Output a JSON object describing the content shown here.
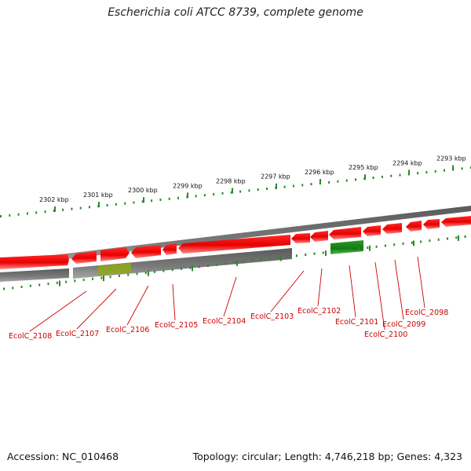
{
  "title": "Escherichia coli ATCC 8739, complete genome",
  "footer": {
    "accession": "Accession: NC_010468",
    "summary": "Topology: circular; Length: 4,746,218 bp; Genes: 4,323"
  },
  "colors": {
    "gene_forward": "#ee1111",
    "gene_highlight": "#1d8a1d",
    "tick": "#2a8a2a",
    "backbone": "#7a7a7a",
    "callout": "#cc0000"
  },
  "ticks": [
    {
      "label": "2302 kbp"
    },
    {
      "label": "2301 kbp"
    },
    {
      "label": "2300 kbp"
    },
    {
      "label": "2299 kbp"
    },
    {
      "label": "2298 kbp"
    },
    {
      "label": "2297 kbp"
    },
    {
      "label": "2296 kbp"
    },
    {
      "label": "2295 kbp"
    },
    {
      "label": "2294 kbp"
    },
    {
      "label": "2293 kbp"
    }
  ],
  "genes": [
    {
      "label": "EcolC_2108"
    },
    {
      "label": "EcolC_2107"
    },
    {
      "label": "EcolC_2106"
    },
    {
      "label": "EcolC_2105"
    },
    {
      "label": "EcolC_2104"
    },
    {
      "label": "EcolC_2103"
    },
    {
      "label": "EcolC_2102"
    },
    {
      "label": "EcolC_2101"
    },
    {
      "label": "EcolC_2100"
    },
    {
      "label": "EcolC_2099"
    },
    {
      "label": "EcolC_2098"
    }
  ]
}
